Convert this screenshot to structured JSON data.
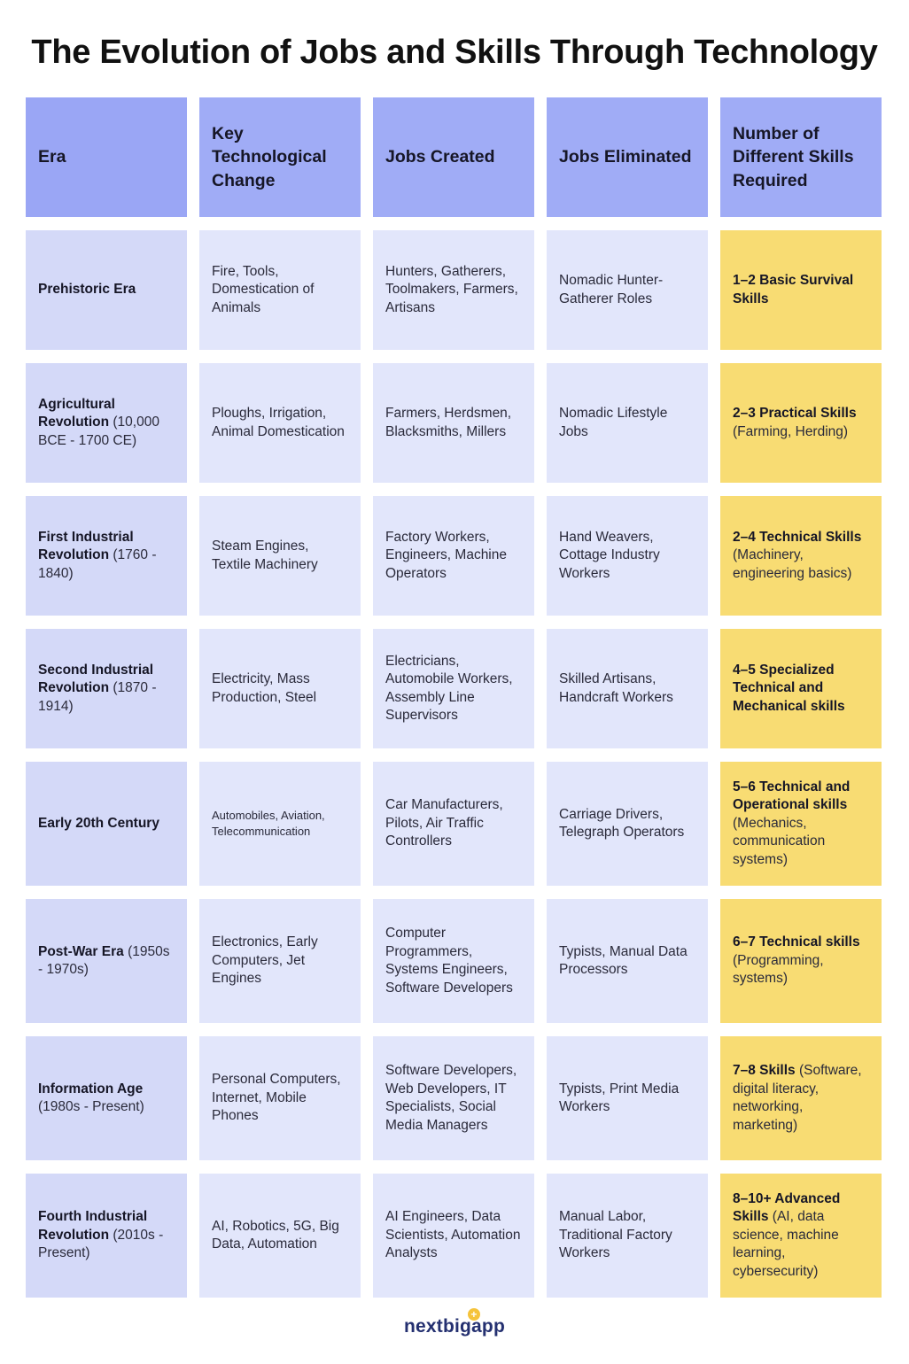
{
  "title": "The Evolution of Jobs and Skills Through Technology",
  "headers": {
    "era": "Era",
    "tech": "Key Technological Change",
    "created": "Jobs Created",
    "eliminated": "Jobs Eliminated",
    "skills": "Number of Different Skills Required"
  },
  "rows": [
    {
      "era_bold": "Prehistoric Era",
      "era_rest": "",
      "tech": "Fire, Tools, Domestication of Animals",
      "created": "Hunters, Gatherers, Toolmakers, Farmers, Artisans",
      "eliminated": "Nomadic Hunter-Gatherer Roles",
      "skills_bold": "1–2 Basic Survival Skills",
      "skills_rest": ""
    },
    {
      "era_bold": "Agricultural Revolution",
      "era_rest": " (10,000 BCE - 1700 CE)",
      "tech": "Ploughs, Irrigation, Animal Domestication",
      "created": "Farmers, Herdsmen, Blacksmiths, Millers",
      "eliminated": "Nomadic Lifestyle Jobs",
      "skills_bold": "2–3 Practical Skills",
      "skills_rest": " (Farming, Herding)"
    },
    {
      "era_bold": "First Industrial Revolution",
      "era_rest": " (1760 - 1840)",
      "tech": "Steam Engines, Textile Machinery",
      "created": "Factory Workers, Engineers, Machine Operators",
      "eliminated": "Hand Weavers, Cottage Industry Workers",
      "skills_bold": "2–4 Technical Skills",
      "skills_rest": " (Machinery, engineering basics)"
    },
    {
      "era_bold": "Second Industrial Revolution",
      "era_rest": " (1870 - 1914)",
      "tech": "Electricity, Mass Production, Steel",
      "created": "Electricians, Automobile Workers, Assembly Line Supervisors",
      "eliminated": "Skilled Artisans, Handcraft Workers",
      "skills_bold": "4–5 Specialized Technical and Mechanical skills",
      "skills_rest": ""
    },
    {
      "era_bold": "Early 20th Century",
      "era_rest": "",
      "tech": "Automobiles, Aviation, Telecommunication",
      "created": "Car Manufacturers, Pilots, Air Traffic Controllers",
      "eliminated": "Carriage Drivers, Telegraph Operators",
      "skills_bold": "5–6 Technical and Operational skills",
      "skills_rest": " (Mechanics, communication systems)"
    },
    {
      "era_bold": "Post-War Era",
      "era_rest": " (1950s - 1970s)",
      "tech": "Electronics, Early Computers, Jet Engines",
      "created": "Computer Programmers, Systems Engineers, Software Developers",
      "eliminated": "Typists, Manual Data Processors",
      "skills_bold": "6–7 Technical skills",
      "skills_rest": " (Programming, systems)"
    },
    {
      "era_bold": "Information Age",
      "era_rest": " (1980s - Present)",
      "tech": "Personal Computers, Internet, Mobile Phones",
      "created": "Software Developers, Web Developers, IT Specialists, Social Media Managers",
      "eliminated": "Typists, Print Media Workers",
      "skills_bold": "7–8 Skills",
      "skills_rest": " (Software, digital literacy, networking, marketing)"
    },
    {
      "era_bold": "Fourth Industrial Revolution",
      "era_rest": " (2010s - Present)",
      "tech": "AI, Robotics, 5G, Big Data, Automation",
      "created": "AI Engineers, Data Scientists, Automation Analysts",
      "eliminated": "Manual Labor, Traditional Factory Workers",
      "skills_bold": "8–10+ Advanced Skills",
      "skills_rest": " (AI, data science, machine learning, cybersecurity)"
    }
  ],
  "logo": {
    "text": "nextbigapp",
    "icon": "plus-badge-icon",
    "icon_glyph": "+",
    "accent_color": "#f5c33b",
    "text_color": "#243070"
  },
  "colors": {
    "header": "#a0acf6",
    "era": "#d4d9f8",
    "body": "#e2e6fb",
    "skills": "#f8dc73"
  }
}
